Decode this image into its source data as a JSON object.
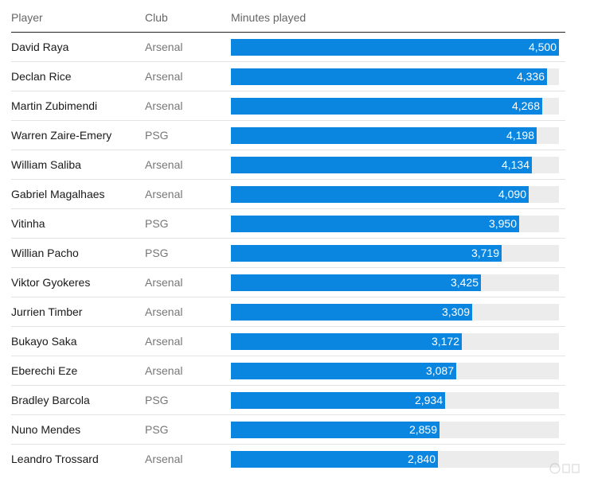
{
  "chart_data": {
    "type": "bar",
    "orientation": "horizontal",
    "headers": {
      "player": "Player",
      "club": "Club",
      "minutes": "Minutes played"
    },
    "xlim": [
      0,
      4500
    ],
    "bar_color": "#0a86e0",
    "track_color": "#ececec",
    "rows": [
      {
        "player": "David Raya",
        "club": "Arsenal",
        "value": 4500,
        "label": "4,500"
      },
      {
        "player": "Declan Rice",
        "club": "Arsenal",
        "value": 4336,
        "label": "4,336"
      },
      {
        "player": "Martin Zubimendi",
        "club": "Arsenal",
        "value": 4268,
        "label": "4,268"
      },
      {
        "player": "Warren Zaire-Emery",
        "club": "PSG",
        "value": 4198,
        "label": "4,198"
      },
      {
        "player": "William Saliba",
        "club": "Arsenal",
        "value": 4134,
        "label": "4,134"
      },
      {
        "player": "Gabriel Magalhaes",
        "club": "Arsenal",
        "value": 4090,
        "label": "4,090"
      },
      {
        "player": "Vitinha",
        "club": "PSG",
        "value": 3950,
        "label": "3,950"
      },
      {
        "player": "Willian Pacho",
        "club": "PSG",
        "value": 3719,
        "label": "3,719"
      },
      {
        "player": "Viktor Gyokeres",
        "club": "Arsenal",
        "value": 3425,
        "label": "3,425"
      },
      {
        "player": "Jurrien Timber",
        "club": "Arsenal",
        "value": 3309,
        "label": "3,309"
      },
      {
        "player": "Bukayo Saka",
        "club": "Arsenal",
        "value": 3172,
        "label": "3,172"
      },
      {
        "player": "Eberechi Eze",
        "club": "Arsenal",
        "value": 3087,
        "label": "3,087"
      },
      {
        "player": "Bradley Barcola",
        "club": "PSG",
        "value": 2934,
        "label": "2,934"
      },
      {
        "player": "Nuno Mendes",
        "club": "PSG",
        "value": 2859,
        "label": "2,859"
      },
      {
        "player": "Leandro Trossard",
        "club": "Arsenal",
        "value": 2840,
        "label": "2,840"
      }
    ]
  },
  "watermark": {
    "icon": "watermark-logo-icon"
  }
}
